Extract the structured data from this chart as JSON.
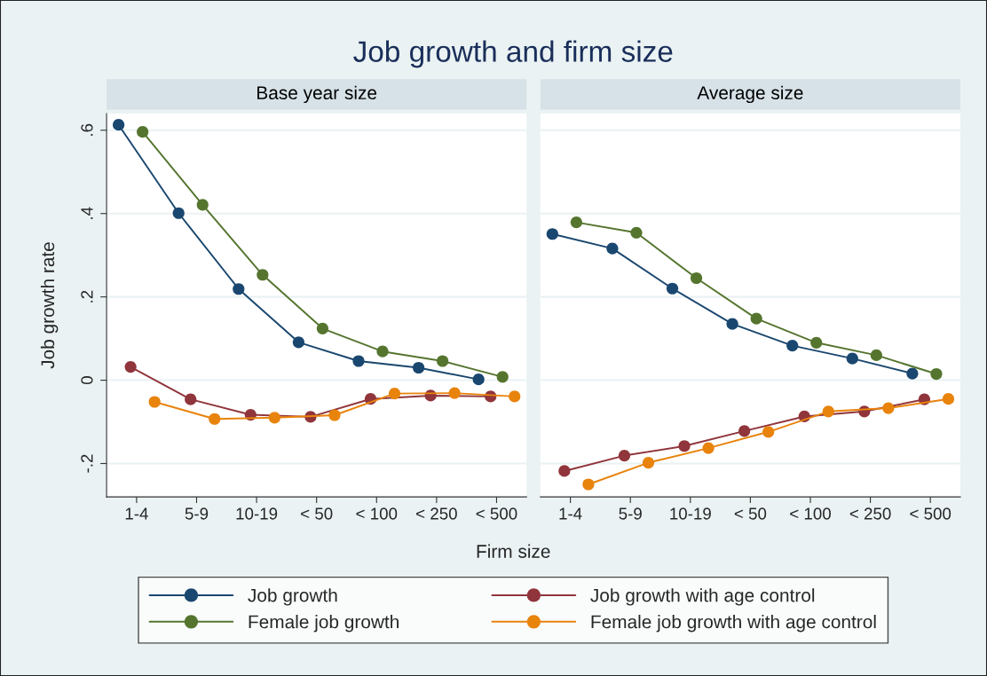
{
  "chart_data": [
    {
      "type": "line",
      "title": "Job growth and firm size",
      "subtitle": "Base year size",
      "xlabel": "Firm size",
      "ylabel": "Job growth rate",
      "categories": [
        "1-4",
        "5-9",
        "10-19",
        "< 50",
        "< 100",
        "< 250",
        "< 500"
      ],
      "ylim": [
        -0.28,
        0.64
      ],
      "yticks": [
        {
          "value": -0.2,
          "label": "-.2"
        },
        0,
        {
          "value": 0.2,
          "label": ".2"
        },
        {
          "value": 0.4,
          "label": ".4"
        },
        {
          "value": 0.6,
          "label": ".6"
        }
      ],
      "grid": "y",
      "legend": "bottom",
      "marker": "circle",
      "line_style": "solid",
      "series": [
        {
          "name": "Job growth",
          "color": "#1a476f",
          "values": [
            0.613,
            0.401,
            0.219,
            0.091,
            0.046,
            0.03,
            0.002
          ]
        },
        {
          "name": "Job growth with age control",
          "color": "#90353b",
          "values": [
            0.032,
            -0.046,
            -0.083,
            -0.088,
            -0.045,
            -0.037,
            -0.039
          ]
        },
        {
          "name": "Female job growth",
          "color": "#55752f",
          "values": [
            0.596,
            0.421,
            0.253,
            0.124,
            0.069,
            0.046,
            0.008
          ]
        },
        {
          "name": "Female job growth with age control",
          "color": "#e8830c",
          "values": [
            -0.052,
            -0.093,
            -0.09,
            -0.084,
            -0.032,
            -0.031,
            -0.039
          ]
        }
      ]
    },
    {
      "type": "line",
      "subtitle": "Average size",
      "tick_labels": "x",
      "categories": [
        "1-4",
        "5-9",
        "10-19",
        "< 50",
        "< 100",
        "< 250",
        "< 500"
      ],
      "ylim": [
        -0.28,
        0.64
      ],
      "yticks": [
        {
          "value": -0.2,
          "label": null
        },
        {
          "value": 0,
          "label": null
        },
        {
          "value": 0.2,
          "label": null
        },
        {
          "value": 0.4,
          "label": null
        },
        {
          "value": 0.6,
          "label": null
        }
      ],
      "grid": "y",
      "marker": "circle",
      "line_style": "solid",
      "series": [
        {
          "color": "#1a476f",
          "values": [
            0.351,
            0.316,
            0.22,
            0.135,
            0.083,
            0.052,
            0.016
          ]
        },
        {
          "color": "#90353b",
          "values": [
            -0.218,
            -0.181,
            -0.158,
            -0.122,
            -0.087,
            -0.075,
            -0.046
          ]
        },
        {
          "color": "#55752f",
          "values": [
            0.379,
            0.354,
            0.245,
            0.148,
            0.09,
            0.06,
            0.015
          ]
        },
        {
          "color": "#e8830c",
          "values": [
            -0.25,
            -0.198,
            -0.163,
            -0.124,
            -0.075,
            -0.067,
            -0.045
          ]
        }
      ]
    }
  ]
}
